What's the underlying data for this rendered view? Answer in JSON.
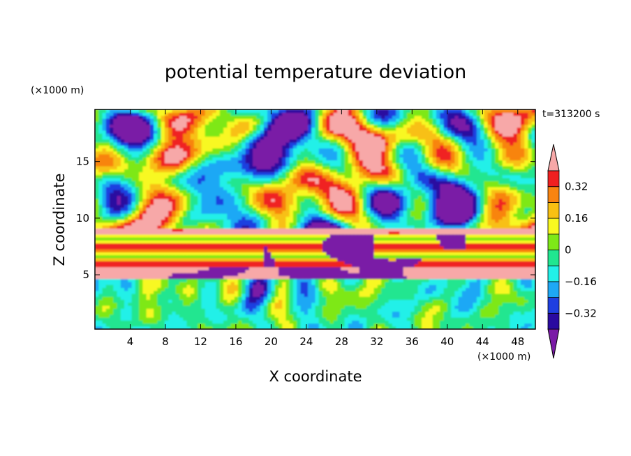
{
  "chart_data": {
    "type": "heatmap",
    "title": "potential temperature deviation",
    "xlabel": "X coordinate",
    "ylabel": "Z coordinate",
    "x_unit": "(×1000 m)",
    "y_unit": "(×1000 m)",
    "time_label": "t=313200 s",
    "xlim": [
      0,
      50
    ],
    "ylim": [
      0.2,
      19.6
    ],
    "x_ticks": [
      4,
      8,
      12,
      16,
      20,
      24,
      28,
      32,
      36,
      40,
      44,
      48
    ],
    "y_ticks": [
      5,
      10,
      15
    ],
    "colorbar": {
      "levels": [
        -0.4,
        -0.32,
        -0.24,
        -0.16,
        -0.08,
        0,
        0.08,
        0.16,
        0.24,
        0.32,
        0.4
      ],
      "labels": [
        -0.32,
        -0.16,
        0,
        0.16,
        0.32
      ],
      "label_text": [
        "−0.32",
        "−0.16",
        "0",
        "0.16",
        "0.32"
      ],
      "under_color": "#7a1aa6",
      "over_color": "#f7a8a8",
      "colors": [
        "#2a0aa0",
        "#1f3fe0",
        "#1ea8f5",
        "#22f0e8",
        "#20e690",
        "#7ee817",
        "#f8f820",
        "#f8c012",
        "#f88410",
        "#f02020"
      ]
    }
  }
}
